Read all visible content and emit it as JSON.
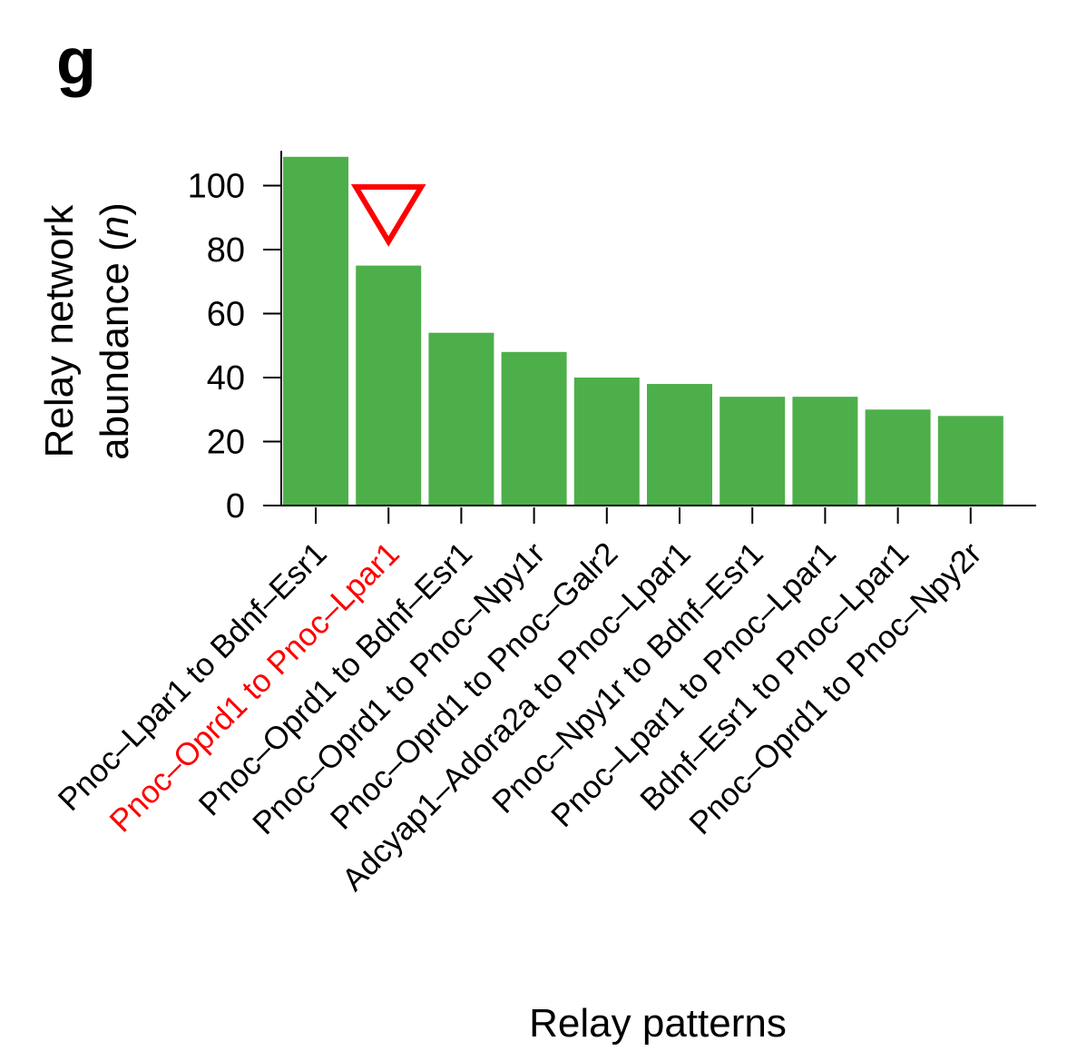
{
  "panel_label": "g",
  "colors": {
    "bar": "#4daf4a",
    "highlight": "#ff0000",
    "axis": "#000000",
    "text": "#000000"
  },
  "chart_data": {
    "type": "bar",
    "title": "",
    "ylabel_line1": "Relay network",
    "ylabel_line2_prefix": "abundance (",
    "ylabel_line2_italic": "n",
    "ylabel_line2_suffix": ")",
    "xlabel": "Relay patterns",
    "ylim": [
      0,
      110
    ],
    "yticks": [
      0,
      20,
      40,
      60,
      80,
      100
    ],
    "categories": [
      "Pnoc–Lpar1 to Bdnf–Esr1",
      "Pnoc–Oprd1 to Pnoc–Lpar1",
      "Pnoc–Oprd1 to Bdnf–Esr1",
      "Pnoc–Oprd1 to Pnoc–Npy1r",
      "Pnoc–Oprd1 to Pnoc–Galr2",
      "Adcyap1–Adora2a to Pnoc–Lpar1",
      "Pnoc–Npy1r to Bdnf–Esr1",
      "Pnoc–Lpar1 to Pnoc–Lpar1",
      "Bdnf–Esr1 to Pnoc–Lpar1",
      "Pnoc–Oprd1 to Pnoc–Npy2r"
    ],
    "values": [
      109,
      75,
      54,
      48,
      40,
      38,
      34,
      34,
      30,
      28
    ],
    "highlight_index": 1,
    "highlight_marker": "downward-triangle",
    "grid": false,
    "legend": "none"
  }
}
